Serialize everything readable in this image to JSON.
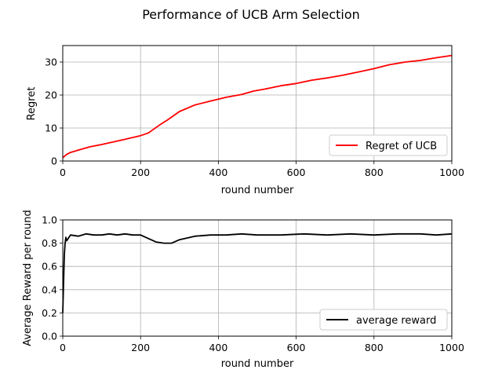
{
  "figure": {
    "title": "Performance of UCB Arm Selection"
  },
  "chart_data": [
    {
      "type": "line",
      "xlabel": "round number",
      "ylabel": "Regret",
      "xlim": [
        0,
        1000
      ],
      "ylim": [
        0,
        35
      ],
      "xticks": [
        0,
        200,
        400,
        600,
        800,
        1000
      ],
      "yticks": [
        0,
        10,
        20,
        30
      ],
      "grid": true,
      "legend_position": "lower-right",
      "series": [
        {
          "name": "Regret of UCB",
          "color": "#ff0000",
          "x": [
            0,
            10,
            20,
            40,
            70,
            100,
            150,
            200,
            220,
            250,
            270,
            300,
            340,
            380,
            420,
            460,
            490,
            520,
            560,
            600,
            640,
            680,
            720,
            760,
            800,
            840,
            880,
            920,
            960,
            1000
          ],
          "y": [
            1,
            2,
            2.6,
            3.3,
            4.3,
            5.0,
            6.3,
            7.7,
            8.5,
            11.0,
            12.5,
            15.0,
            17.0,
            18.2,
            19.3,
            20.2,
            21.2,
            21.8,
            22.8,
            23.5,
            24.5,
            25.2,
            26.0,
            27.0,
            28.0,
            29.2,
            30.0,
            30.5,
            31.3,
            32.0
          ]
        }
      ]
    },
    {
      "type": "line",
      "xlabel": "round number",
      "ylabel": "Average Reward per round",
      "xlim": [
        0,
        1000
      ],
      "ylim": [
        0,
        1.0
      ],
      "xticks": [
        0,
        200,
        400,
        600,
        800,
        1000
      ],
      "yticks": [
        0.0,
        0.2,
        0.4,
        0.6,
        0.8,
        1.0
      ],
      "grid": true,
      "legend_position": "lower-right",
      "series": [
        {
          "name": "average reward",
          "color": "#000000",
          "x": [
            0,
            2,
            4,
            6,
            8,
            10,
            20,
            40,
            60,
            80,
            100,
            120,
            140,
            160,
            180,
            200,
            220,
            240,
            260,
            280,
            300,
            340,
            380,
            420,
            460,
            500,
            560,
            620,
            680,
            740,
            800,
            860,
            920,
            960,
            1000
          ],
          "y": [
            0.2,
            0.45,
            0.7,
            0.8,
            0.85,
            0.82,
            0.87,
            0.86,
            0.88,
            0.87,
            0.87,
            0.88,
            0.87,
            0.88,
            0.87,
            0.87,
            0.84,
            0.81,
            0.8,
            0.8,
            0.83,
            0.86,
            0.87,
            0.87,
            0.88,
            0.87,
            0.87,
            0.88,
            0.87,
            0.88,
            0.87,
            0.88,
            0.88,
            0.87,
            0.88
          ]
        }
      ]
    }
  ]
}
